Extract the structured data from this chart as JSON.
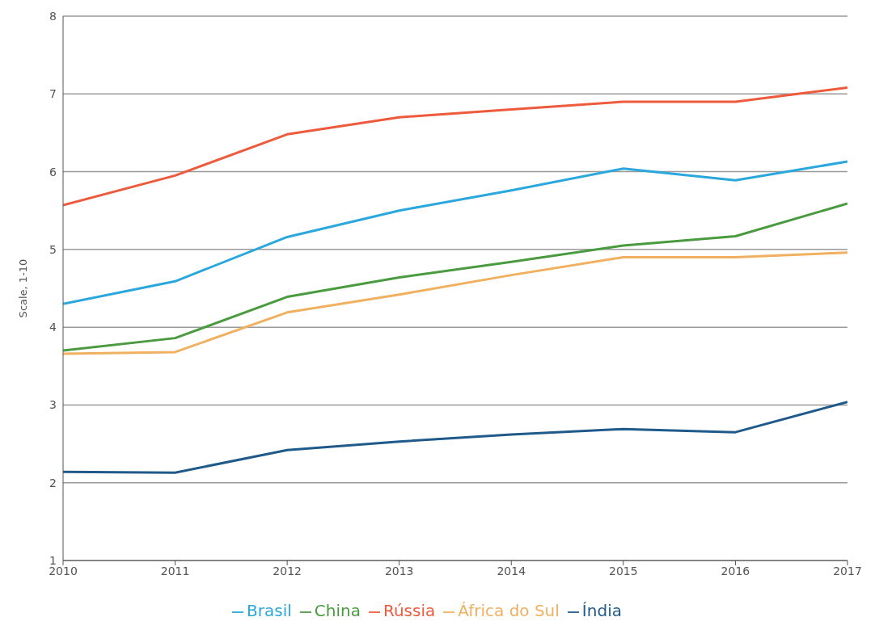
{
  "chart_data": {
    "type": "line",
    "ylabel": "Scale, 1-10",
    "x": [
      2010,
      2011,
      2012,
      2013,
      2014,
      2015,
      2016,
      2017
    ],
    "xlim": [
      2010,
      2017
    ],
    "xticks": [
      2010,
      2011,
      2012,
      2013,
      2014,
      2015,
      2016,
      2017
    ],
    "ylim": [
      1,
      8
    ],
    "yticks": [
      1,
      2,
      3,
      4,
      5,
      6,
      7,
      8
    ],
    "grid": "y",
    "legend": "bottom",
    "marker": "none",
    "line_style": "solid",
    "series": [
      {
        "name": "China",
        "color": "#4a9a3f",
        "values": [
          3.7,
          3.86,
          4.39,
          4.64,
          4.84,
          5.05,
          5.17,
          5.59
        ]
      },
      {
        "name": "Brasil",
        "color": "#2aa7dc",
        "values": [
          4.3,
          4.59,
          5.16,
          5.5,
          5.76,
          6.04,
          5.89,
          6.13
        ]
      },
      {
        "name": "Rússia",
        "color": "#ee5a3c",
        "values": [
          5.57,
          5.95,
          6.48,
          6.7,
          6.8,
          6.9,
          6.9,
          7.08
        ]
      },
      {
        "name": "África do Sul",
        "color": "#f0b060",
        "values": [
          3.66,
          3.68,
          4.19,
          4.42,
          4.67,
          4.9,
          4.9,
          4.96
        ]
      },
      {
        "name": "Índia",
        "color": "#1f5a8a",
        "values": [
          2.14,
          2.13,
          2.42,
          2.53,
          2.62,
          2.69,
          2.65,
          3.04
        ]
      }
    ]
  }
}
